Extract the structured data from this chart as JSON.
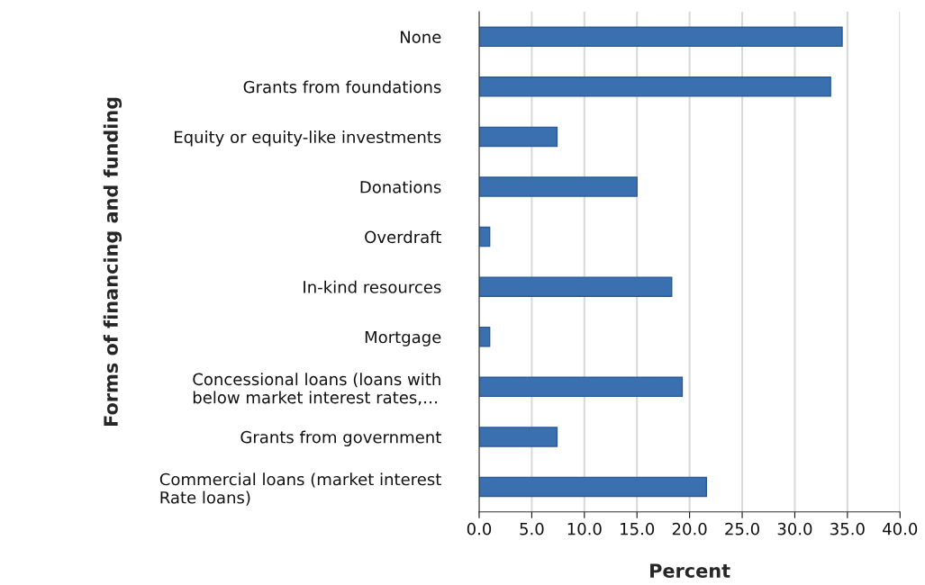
{
  "chart_data": {
    "type": "bar",
    "orientation": "horizontal",
    "xlabel": "Percent",
    "ylabel": "Forms of financing and funding",
    "categories": [
      "None",
      "Grants from foundations",
      "Equity or equity-like investments",
      "Donations",
      "Overdraft",
      "In-kind resources",
      "Mortgage",
      "Concessional loans (loans with\nbelow market interest rates,…",
      "Grants from government",
      "Commercial loans (market interest\nRate loans)"
    ],
    "values": [
      34.5,
      33.4,
      7.4,
      15.0,
      1.0,
      18.3,
      1.0,
      19.3,
      7.4,
      21.6
    ],
    "color": "#3a70b0",
    "xlim": [
      0,
      40
    ],
    "xticks": [
      {
        "value": 0,
        "label": "0.0"
      },
      {
        "value": 5,
        "label": "5.0"
      },
      {
        "value": 10,
        "label": "10.0"
      },
      {
        "value": 15,
        "label": "15.0"
      },
      {
        "value": 20,
        "label": "20.0"
      },
      {
        "value": 25,
        "label": "25.0"
      },
      {
        "value": 30,
        "label": "30.0"
      },
      {
        "value": 35,
        "label": "35.0"
      },
      {
        "value": 40,
        "label": "40.0"
      }
    ],
    "grid": "x",
    "legend": false
  }
}
